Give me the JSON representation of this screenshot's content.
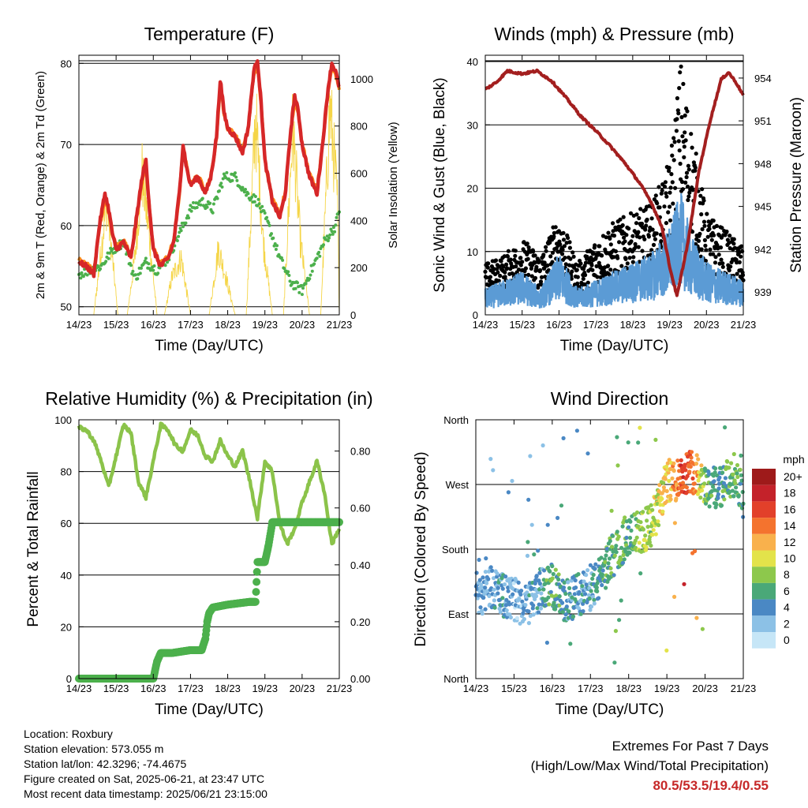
{
  "info": {
    "location": "Location: Roxbury",
    "elevation": "Station elevation: 573.055 m",
    "latlon": "Station lat/lon: 42.3296; -74.4675",
    "created": "Figure created on Sat, 2025-06-21, at 23:47 UTC",
    "recent": "Most recent data timestamp: 2025/06/21 23:15:00"
  },
  "extremes": {
    "title": "Extremes For Past 7 Days",
    "subtitle": "(High/Low/Max Wind/Total Precipitation)",
    "values": "80.5/53.5/19.4/0.55",
    "color": "#c62828"
  },
  "chart_data": [
    {
      "type": "line",
      "title": "Temperature (F)",
      "xlabel": "Time (Day/UTC)",
      "ylabel": "2m & 9m T (Red, Orange) & 2m Td (Green)",
      "y2label": "Solar Insolation (Yellow)",
      "xticks": [
        "14/23",
        "15/23",
        "16/23",
        "17/23",
        "18/23",
        "19/23",
        "20/23",
        "21/23"
      ],
      "xlim": [
        0,
        7
      ],
      "ylim": [
        49,
        81
      ],
      "yticks": [
        50,
        60,
        70,
        80
      ],
      "y2lim": [
        0,
        1100
      ],
      "y2ticks": [
        0,
        200,
        400,
        600,
        800,
        1000
      ],
      "grid": true,
      "series": [
        {
          "name": "2m T",
          "color": "#d62728",
          "axis": "left",
          "x": [
            0,
            0.2,
            0.4,
            0.55,
            0.7,
            0.8,
            0.9,
            1.0,
            1.2,
            1.4,
            1.55,
            1.7,
            1.8,
            1.9,
            2.0,
            2.2,
            2.4,
            2.55,
            2.7,
            2.8,
            2.9,
            3.0,
            3.2,
            3.4,
            3.55,
            3.7,
            3.8,
            3.9,
            4.0,
            4.2,
            4.4,
            4.55,
            4.7,
            4.8,
            4.9,
            5.0,
            5.2,
            5.4,
            5.55,
            5.7,
            5.8,
            5.9,
            6.0,
            6.2,
            6.4,
            6.55,
            6.7,
            6.8,
            6.9,
            7.0
          ],
          "y": [
            55.5,
            55,
            54,
            60,
            64,
            62,
            59,
            57,
            58,
            56,
            61,
            66,
            68,
            62,
            57,
            55,
            56,
            58,
            64,
            70,
            67,
            65,
            66,
            64,
            66,
            71,
            78,
            74,
            72,
            71,
            69,
            72,
            79,
            80.5,
            75,
            68,
            63,
            61,
            64,
            72,
            76,
            74,
            70,
            66,
            64,
            70,
            77,
            80,
            79,
            77
          ]
        },
        {
          "name": "9m T",
          "color": "#ff8c1a",
          "axis": "left",
          "x": [
            0,
            0.2,
            0.4,
            0.55,
            0.7,
            0.8,
            0.9,
            1.0,
            1.2,
            1.4,
            1.55,
            1.7,
            1.8,
            1.9,
            2.0,
            2.2,
            2.4,
            2.55,
            2.7,
            2.8,
            2.9,
            3.0,
            3.2,
            3.4,
            3.55,
            3.7,
            3.8,
            3.9,
            4.0,
            4.2,
            4.4,
            4.55,
            4.7,
            4.8,
            4.9,
            5.0,
            5.2,
            5.4,
            5.55,
            5.7,
            5.8,
            5.9,
            6.0,
            6.2,
            6.4,
            6.55,
            6.7,
            6.8,
            6.9,
            7.0
          ],
          "y": [
            55.8,
            55.3,
            54.3,
            59.5,
            63.5,
            61.8,
            59.2,
            57.3,
            58.2,
            56.3,
            60.8,
            65.5,
            67.5,
            61.8,
            57.2,
            55.3,
            56.2,
            58.2,
            63.7,
            69.6,
            67.2,
            65.2,
            66.1,
            64.3,
            66.1,
            70.6,
            77.5,
            73.8,
            72,
            71.2,
            69.3,
            71.8,
            78.6,
            80,
            74.8,
            68.2,
            63.3,
            61.4,
            64.2,
            71.6,
            75.6,
            73.8,
            70.1,
            66.3,
            64.4,
            69.8,
            76.6,
            79.6,
            78.7,
            76.8
          ]
        },
        {
          "name": "2m Td",
          "color": "#4cb04c",
          "axis": "left",
          "x": [
            0,
            0.3,
            0.6,
            0.9,
            1.2,
            1.5,
            1.8,
            2.1,
            2.4,
            2.7,
            3.0,
            3.3,
            3.6,
            3.9,
            4.2,
            4.5,
            4.8,
            5.1,
            5.4,
            5.7,
            6.0,
            6.3,
            6.6,
            6.9,
            7.0
          ],
          "y": [
            54,
            54.5,
            55,
            57,
            58,
            53.5,
            55.5,
            54.5,
            56,
            59,
            62,
            63,
            62,
            66,
            66,
            64,
            63,
            60,
            56,
            53,
            52,
            55,
            58,
            60,
            62
          ]
        },
        {
          "name": "Solar Insolation",
          "color": "#f5d547",
          "axis": "right",
          "x": [
            0,
            0.4,
            0.6,
            0.75,
            0.9,
            1.05,
            1.3,
            1.5,
            1.7,
            1.9,
            2.1,
            2.3,
            2.5,
            2.75,
            3.0,
            3.3,
            3.5,
            3.75,
            3.95,
            4.2,
            4.5,
            4.75,
            4.95,
            5.2,
            5.5,
            5.75,
            5.95,
            6.2,
            6.5,
            6.75,
            6.95,
            7.0
          ],
          "y": [
            0,
            0,
            350,
            600,
            300,
            0,
            0,
            300,
            750,
            400,
            0,
            0,
            200,
            300,
            0,
            0,
            0,
            350,
            200,
            0,
            0,
            1050,
            400,
            0,
            0,
            1000,
            400,
            0,
            0,
            1100,
            600,
            0
          ]
        }
      ]
    },
    {
      "type": "line",
      "title": "Winds (mph) & Pressure (mb)",
      "xlabel": "Time (Day/UTC)",
      "ylabel": "Sonic Wind & Gust (Blue, Black)",
      "y2label": "Station Pressure (Maroon)",
      "xticks": [
        "14/23",
        "15/23",
        "16/23",
        "17/23",
        "18/23",
        "19/23",
        "20/23",
        "21/23"
      ],
      "xlim": [
        0,
        7
      ],
      "ylim": [
        0,
        41
      ],
      "yticks": [
        0,
        10,
        20,
        30,
        40
      ],
      "y2lim": [
        937.4,
        955.6
      ],
      "y2ticks": [
        939,
        942,
        945,
        948,
        951,
        954
      ],
      "grid": true,
      "series": [
        {
          "name": "Sonic Wind",
          "color": "#5b9bd5",
          "axis": "left",
          "x": [
            0,
            0.5,
            1.0,
            1.5,
            2.0,
            2.5,
            3.0,
            3.5,
            4.0,
            4.5,
            5.0,
            5.3,
            5.6,
            6.0,
            6.5,
            7.0
          ],
          "y": [
            3,
            4,
            5,
            3,
            7,
            3,
            4,
            5,
            6,
            7,
            10,
            14,
            9,
            6,
            5,
            4
          ]
        },
        {
          "name": "Gust",
          "color": "#000000",
          "axis": "left",
          "x": [
            0,
            0.5,
            1.0,
            1.5,
            2.0,
            2.5,
            3.0,
            3.5,
            4.0,
            4.5,
            5.0,
            5.3,
            5.6,
            6.0,
            6.5,
            7.0
          ],
          "y": [
            6,
            7,
            9,
            7,
            12,
            6,
            9,
            11,
            12,
            13,
            18,
            30,
            22,
            12,
            10,
            8
          ]
        },
        {
          "name": "Station Pressure",
          "color": "#a31f1f",
          "axis": "right",
          "x": [
            0,
            0.3,
            0.6,
            1.0,
            1.4,
            1.8,
            2.2,
            2.6,
            3.0,
            3.4,
            3.8,
            4.2,
            4.5,
            4.8,
            5.0,
            5.2,
            5.5,
            5.8,
            6.1,
            6.4,
            6.6,
            6.8,
            7.0
          ],
          "y": [
            953.2,
            953.7,
            954.5,
            954.3,
            954.5,
            953.8,
            952.6,
            951.3,
            950.3,
            949.2,
            948.0,
            946.6,
            945.3,
            943.5,
            940.8,
            938.7,
            942.5,
            947.5,
            951.0,
            953.9,
            954.4,
            953.7,
            952.8
          ]
        }
      ]
    },
    {
      "type": "line",
      "title": "Relative Humidity (%) & Precipitation (in)",
      "xlabel": "Time (Day/UTC)",
      "ylabel": "Percent & Total Rainfall",
      "xticks": [
        "14/23",
        "15/23",
        "16/23",
        "17/23",
        "18/23",
        "19/23",
        "20/23",
        "21/23"
      ],
      "xlim": [
        0,
        7
      ],
      "ylim": [
        0,
        100
      ],
      "yticks": [
        0,
        20,
        40,
        60,
        80,
        100
      ],
      "y2lim": [
        0,
        0.91
      ],
      "y2ticks": [
        0.0,
        0.2,
        0.4,
        0.6,
        0.8
      ],
      "grid": true,
      "series": [
        {
          "name": "Relative Humidity",
          "color": "#8bc34a",
          "axis": "left",
          "x": [
            0,
            0.2,
            0.4,
            0.6,
            0.8,
            1.0,
            1.2,
            1.4,
            1.6,
            1.8,
            2.0,
            2.2,
            2.4,
            2.6,
            2.8,
            3.0,
            3.2,
            3.4,
            3.6,
            3.8,
            4.0,
            4.2,
            4.4,
            4.6,
            4.8,
            5.0,
            5.2,
            5.4,
            5.6,
            5.8,
            6.0,
            6.2,
            6.4,
            6.6,
            6.8,
            7.0
          ],
          "y": [
            97,
            96,
            92,
            84,
            74,
            86,
            98,
            95,
            76,
            70,
            84,
            98,
            96,
            90,
            88,
            96,
            94,
            86,
            84,
            92,
            86,
            82,
            88,
            76,
            62,
            84,
            80,
            60,
            52,
            58,
            68,
            76,
            84,
            72,
            52,
            58
          ]
        },
        {
          "name": "Total Precipitation",
          "color": "#4cb04c",
          "axis": "right",
          "x": [
            0,
            1.0,
            2.0,
            2.1,
            2.2,
            2.5,
            3.0,
            3.3,
            3.4,
            3.45,
            3.5,
            3.6,
            4.0,
            4.6,
            4.75,
            4.8,
            5.0,
            5.1,
            5.15,
            5.2,
            6.0,
            7.0
          ],
          "y": [
            0,
            0,
            0,
            0.06,
            0.09,
            0.09,
            0.1,
            0.1,
            0.14,
            0.2,
            0.23,
            0.25,
            0.26,
            0.27,
            0.27,
            0.41,
            0.41,
            0.47,
            0.51,
            0.55,
            0.55,
            0.55
          ]
        }
      ]
    },
    {
      "type": "scatter",
      "title": "Wind Direction",
      "xlabel": "Time (Day/UTC)",
      "ylabel": "Direction (Colored By Speed)",
      "xticks": [
        "14/23",
        "15/23",
        "16/23",
        "17/23",
        "18/23",
        "19/23",
        "20/23",
        "21/23"
      ],
      "xlim": [
        0,
        7
      ],
      "yticks": [
        "North",
        "East",
        "South",
        "West",
        "North"
      ],
      "ylim": [
        0,
        360
      ],
      "grid": true,
      "colorbar": {
        "label": "mph",
        "levels": [
          "0",
          "2",
          "4",
          "6",
          "8",
          "10",
          "12",
          "14",
          "16",
          "18",
          "20+"
        ],
        "colors": [
          "#c6e6f7",
          "#8cc1e6",
          "#4a88c4",
          "#4aa878",
          "#8dc84c",
          "#e3e34a",
          "#f9b14c",
          "#f4732e",
          "#e2402a",
          "#c4222a",
          "#9e1a1a"
        ]
      },
      "series": [
        {
          "name": "Wind direction",
          "x": [
            0.2,
            0.4,
            0.7,
            1.0,
            1.3,
            1.7,
            2.0,
            2.3,
            2.6,
            2.9,
            3.2,
            3.5,
            3.8,
            4.0,
            4.3,
            4.6,
            4.8,
            5.0,
            5.2,
            5.4,
            5.6,
            5.8,
            6.0,
            6.2,
            6.5,
            6.8,
            7.0
          ],
          "y": [
            120,
            130,
            115,
            110,
            100,
            125,
            130,
            105,
            115,
            120,
            135,
            165,
            185,
            205,
            200,
            215,
            240,
            275,
            275,
            285,
            290,
            285,
            270,
            265,
            270,
            285,
            250
          ],
          "speed": [
            3,
            3,
            4,
            2,
            3,
            4,
            7,
            4,
            5,
            3,
            5,
            6,
            7,
            6,
            8,
            9,
            10,
            11,
            13,
            16,
            15,
            12,
            7,
            5,
            6,
            7,
            5
          ]
        }
      ]
    }
  ]
}
